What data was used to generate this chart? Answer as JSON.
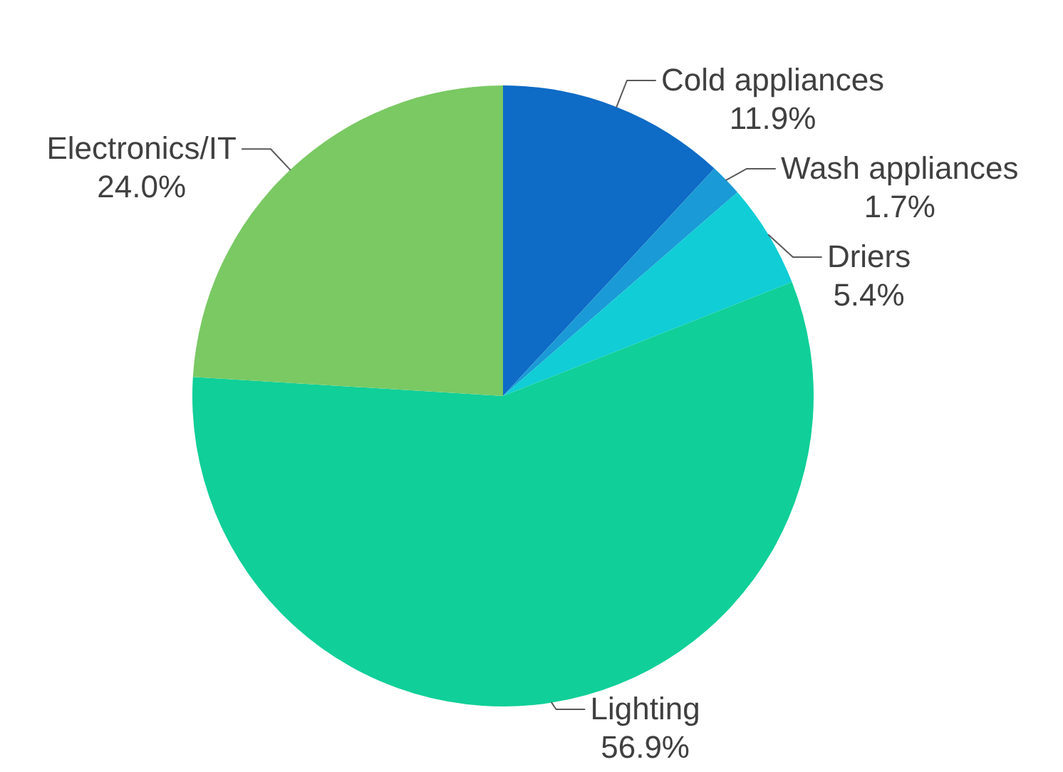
{
  "chart_data": {
    "type": "pie",
    "categories": [
      "Cold appliances",
      "Wash appliances",
      "Driers",
      "Lighting",
      "Electronics/IT"
    ],
    "values": [
      11.9,
      1.7,
      5.4,
      56.9,
      24.0
    ],
    "value_labels": [
      "11.9%",
      "1.7%",
      "5.4%",
      "56.9%",
      "24.0%"
    ],
    "colors": [
      "#0e6bc6",
      "#1a9ad6",
      "#10cdd6",
      "#10cf98",
      "#7ac963"
    ]
  }
}
